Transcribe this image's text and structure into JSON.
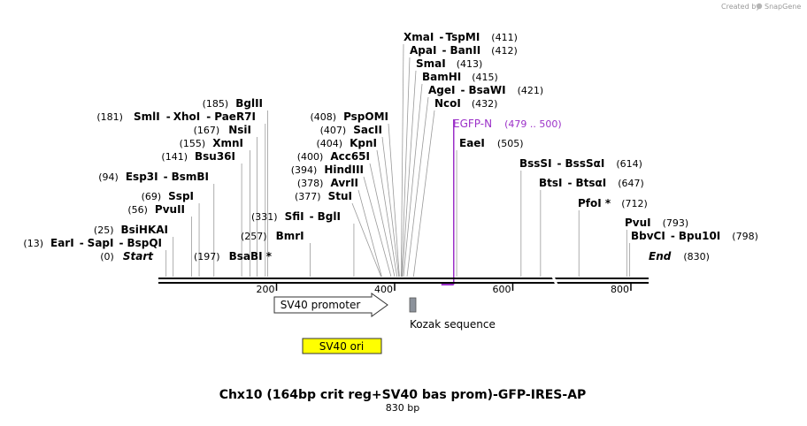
{
  "credit": {
    "text": "Created by",
    "brand": "SnapGene"
  },
  "title": "Chx10 (164bp crit reg+SV40 bas prom)-GFP-IRES-AP",
  "subtitle": "830 bp",
  "sequence_length": 830,
  "axis_ticks": [
    "200",
    "400",
    "600",
    "800"
  ],
  "sites": [
    {
      "id": "xma",
      "names": [
        "XmaI",
        "TspMI"
      ],
      "pos": "(411)",
      "bp": 411
    },
    {
      "id": "apa",
      "names": [
        "ApaI",
        "BanII"
      ],
      "pos": "(412)",
      "bp": 412
    },
    {
      "id": "sma",
      "names": [
        "SmaI"
      ],
      "pos": "(413)",
      "bp": 413
    },
    {
      "id": "bam",
      "names": [
        "BamHI"
      ],
      "pos": "(415)",
      "bp": 415
    },
    {
      "id": "age",
      "names": [
        "AgeI",
        "BsaWI"
      ],
      "pos": "(421)",
      "bp": 421
    },
    {
      "id": "nco",
      "names": [
        "NcoI"
      ],
      "pos": "(432)",
      "bp": 432
    },
    {
      "id": "bgl",
      "names": [
        "BglII"
      ],
      "pos": "(185)",
      "bp": 185
    },
    {
      "id": "sml",
      "names": [
        "SmlI",
        "XhoI",
        "PaeR7I"
      ],
      "pos": "(181)",
      "bp": 181
    },
    {
      "id": "nsi",
      "names": [
        "NsiI"
      ],
      "pos": "(167)",
      "bp": 167
    },
    {
      "id": "xmn",
      "names": [
        "XmnI"
      ],
      "pos": "(155)",
      "bp": 155
    },
    {
      "id": "bsu",
      "names": [
        "Bsu36I"
      ],
      "pos": "(141)",
      "bp": 141
    },
    {
      "id": "esp",
      "names": [
        "Esp3I",
        "BsmBI"
      ],
      "pos": "(94)",
      "bp": 94
    },
    {
      "id": "ssp",
      "names": [
        "SspI"
      ],
      "pos": "(69)",
      "bp": 69
    },
    {
      "id": "pvuii",
      "names": [
        "PvuII"
      ],
      "pos": "(56)",
      "bp": 56
    },
    {
      "id": "bsih",
      "names": [
        "BsiHKAI"
      ],
      "pos": "(25)",
      "bp": 25
    },
    {
      "id": "ear",
      "names": [
        "EarI",
        "SapI",
        "BspQI"
      ],
      "pos": "(13)",
      "bp": 13
    },
    {
      "id": "start",
      "names": [
        "Start"
      ],
      "pos": "(0)",
      "bp": 0
    },
    {
      "id": "bsab",
      "names": [
        "BsaBI *"
      ],
      "pos": "(197)",
      "bp": 197
    },
    {
      "id": "bmr",
      "names": [
        "BmrI"
      ],
      "pos": "(257)",
      "bp": 257
    },
    {
      "id": "sfi",
      "names": [
        "SfiI",
        "BglI"
      ],
      "pos": "(331)",
      "bp": 331
    },
    {
      "id": "psp",
      "names": [
        "PspOMI"
      ],
      "pos": "(408)",
      "bp": 408
    },
    {
      "id": "sac",
      "names": [
        "SacII"
      ],
      "pos": "(407)",
      "bp": 407
    },
    {
      "id": "kpn",
      "names": [
        "KpnI"
      ],
      "pos": "(404)",
      "bp": 404
    },
    {
      "id": "acc",
      "names": [
        "Acc65I"
      ],
      "pos": "(400)",
      "bp": 400
    },
    {
      "id": "hind",
      "names": [
        "HindIII"
      ],
      "pos": "(394)",
      "bp": 394
    },
    {
      "id": "avr",
      "names": [
        "AvrII"
      ],
      "pos": "(378)",
      "bp": 378
    },
    {
      "id": "stu",
      "names": [
        "StuI"
      ],
      "pos": "(377)",
      "bp": 377
    },
    {
      "id": "eae",
      "names": [
        "EaeI"
      ],
      "pos": "(505)",
      "bp": 505
    },
    {
      "id": "bss",
      "names": [
        "BssSI",
        "BssSαI"
      ],
      "pos": "(614)",
      "bp": 614
    },
    {
      "id": "bts",
      "names": [
        "BtsI",
        "BtsαI"
      ],
      "pos": "(647)",
      "bp": 647
    },
    {
      "id": "pfo",
      "names": [
        "PfoI *"
      ],
      "pos": "(712)",
      "bp": 712
    },
    {
      "id": "pvui",
      "names": [
        "PvuI"
      ],
      "pos": "(793)",
      "bp": 793
    },
    {
      "id": "bbv",
      "names": [
        "BbvCI",
        "Bpu10I"
      ],
      "pos": "(798)",
      "bp": 798
    },
    {
      "id": "end",
      "names": [
        "End"
      ],
      "pos": "(830)",
      "bp": 830
    }
  ],
  "primer": {
    "name": "EGFP-N",
    "range": "(479 .. 500)",
    "start": 479,
    "end": 500,
    "color": "#9b30c8"
  },
  "features": {
    "sv40_promoter": {
      "label": "SV40 promoter"
    },
    "kozak": {
      "label": "Kozak sequence"
    },
    "sv40_ori": {
      "label": "SV40 ori",
      "color": "#ffff00"
    }
  }
}
